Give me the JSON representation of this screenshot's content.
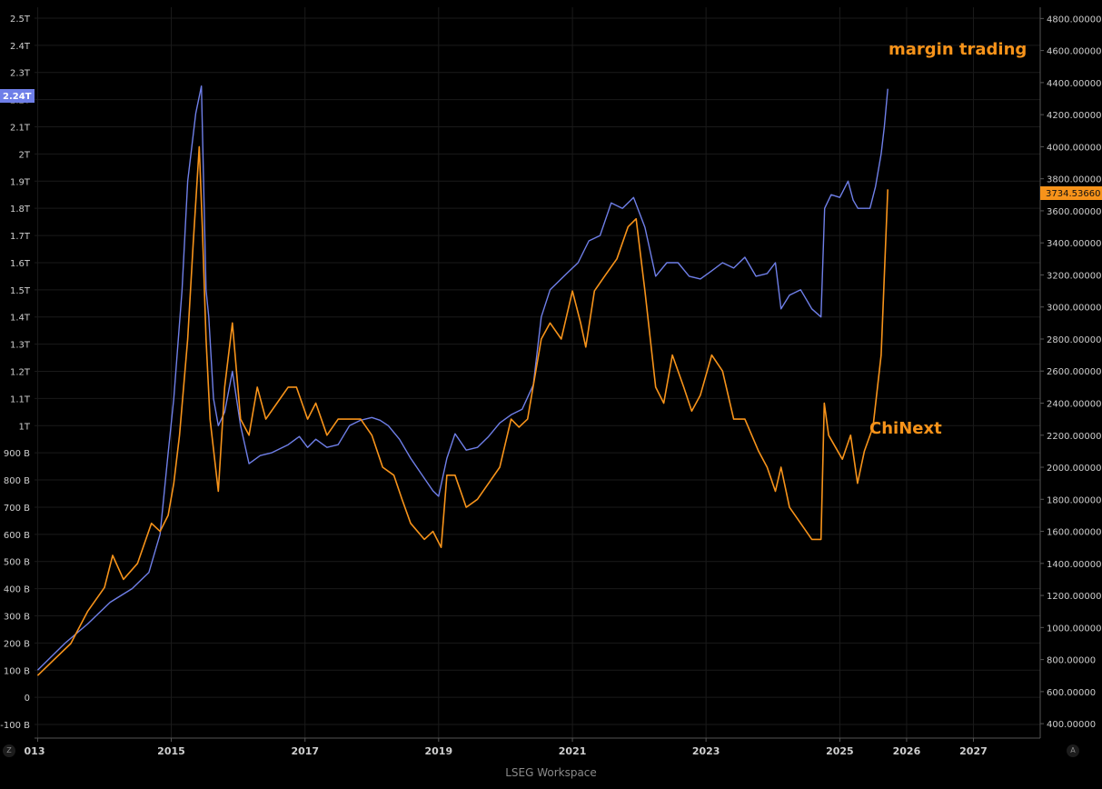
{
  "footer_text": "LSEG Workspace",
  "corner_left": "Z",
  "corner_right": "A",
  "chart_data": {
    "type": "line",
    "x_ticks": [
      "013",
      "2015",
      "2017",
      "2019",
      "2021",
      "2023",
      "2025",
      "2026",
      "2027"
    ],
    "xlim": [
      "2012-12-15",
      "2028-01-01"
    ],
    "left_axis": {
      "ticks": [
        "-100 B",
        "0",
        "100 B",
        "200 B",
        "300 B",
        "400 B",
        "500 B",
        "600 B",
        "700 B",
        "800 B",
        "900 B",
        "1T",
        "1.1T",
        "1.2T",
        "1.3T",
        "1.4T",
        "1.5T",
        "1.6T",
        "1.7T",
        "1.8T",
        "1.9T",
        "2T",
        "2.1T",
        "2.2T",
        "2.3T",
        "2.4T",
        "2.5T"
      ],
      "tick_values": [
        -100,
        0,
        100,
        200,
        300,
        400,
        500,
        600,
        700,
        800,
        900,
        1000,
        1100,
        1200,
        1300,
        1400,
        1500,
        1600,
        1700,
        1800,
        1900,
        2000,
        2100,
        2200,
        2300,
        2400,
        2500
      ],
      "unit_note": "B",
      "ylim": [
        -150,
        2540
      ],
      "last_value_label": "2.24T"
    },
    "right_axis": {
      "ticks": [
        "400.00000",
        "600.00000",
        "800.00000",
        "1000.00000",
        "1200.00000",
        "1400.00000",
        "1600.00000",
        "1800.00000",
        "2000.00000",
        "2200.00000",
        "2400.00000",
        "2600.00000",
        "2800.00000",
        "3000.00000",
        "3200.00000",
        "3400.00000",
        "3600.00000",
        "3800.00000",
        "4000.00000",
        "4200.00000",
        "4400.00000",
        "4600.00000",
        "4800.00000"
      ],
      "tick_values": [
        400,
        600,
        800,
        1000,
        1200,
        1400,
        1600,
        1800,
        2000,
        2200,
        2400,
        2600,
        2800,
        3000,
        3200,
        3400,
        3600,
        3800,
        4000,
        4200,
        4400,
        4600,
        4800
      ],
      "ylim": [
        310,
        4870
      ],
      "last_value_label": "3734.53660"
    },
    "annotations": [
      {
        "text": "margin trading",
        "color": "#f7931a"
      },
      {
        "text": "ChiNext",
        "color": "#f7931a"
      }
    ],
    "series": [
      {
        "name": "margin trading",
        "axis": "left",
        "color": "#6f7fe8",
        "points": [
          [
            "2013-01-01",
            100
          ],
          [
            "2013-06-01",
            200
          ],
          [
            "2013-10-01",
            270
          ],
          [
            "2014-02-01",
            350
          ],
          [
            "2014-06-01",
            400
          ],
          [
            "2014-09-01",
            460
          ],
          [
            "2014-11-01",
            600
          ],
          [
            "2014-12-15",
            900
          ],
          [
            "2015-01-15",
            1100
          ],
          [
            "2015-03-01",
            1500
          ],
          [
            "2015-04-01",
            1900
          ],
          [
            "2015-05-15",
            2150
          ],
          [
            "2015-06-15",
            2250
          ],
          [
            "2015-07-10",
            1500
          ],
          [
            "2015-07-25",
            1400
          ],
          [
            "2015-08-20",
            1100
          ],
          [
            "2015-09-15",
            1000
          ],
          [
            "2015-10-20",
            1050
          ],
          [
            "2015-12-01",
            1200
          ],
          [
            "2016-01-15",
            1000
          ],
          [
            "2016-03-01",
            860
          ],
          [
            "2016-05-01",
            890
          ],
          [
            "2016-07-01",
            900
          ],
          [
            "2016-10-01",
            930
          ],
          [
            "2016-12-01",
            960
          ],
          [
            "2017-01-15",
            920
          ],
          [
            "2017-03-01",
            950
          ],
          [
            "2017-05-01",
            920
          ],
          [
            "2017-07-01",
            930
          ],
          [
            "2017-09-01",
            1000
          ],
          [
            "2017-11-01",
            1020
          ],
          [
            "2018-01-01",
            1030
          ],
          [
            "2018-02-15",
            1020
          ],
          [
            "2018-04-01",
            1000
          ],
          [
            "2018-06-01",
            950
          ],
          [
            "2018-08-01",
            880
          ],
          [
            "2018-10-01",
            820
          ],
          [
            "2018-12-01",
            760
          ],
          [
            "2019-01-01",
            740
          ],
          [
            "2019-02-15",
            880
          ],
          [
            "2019-04-01",
            970
          ],
          [
            "2019-06-01",
            910
          ],
          [
            "2019-08-01",
            920
          ],
          [
            "2019-10-01",
            960
          ],
          [
            "2019-12-01",
            1010
          ],
          [
            "2020-02-01",
            1040
          ],
          [
            "2020-04-01",
            1060
          ],
          [
            "2020-06-01",
            1150
          ],
          [
            "2020-07-15",
            1400
          ],
          [
            "2020-09-01",
            1500
          ],
          [
            "2020-12-01",
            1560
          ],
          [
            "2021-02-01",
            1600
          ],
          [
            "2021-04-01",
            1680
          ],
          [
            "2021-06-01",
            1700
          ],
          [
            "2021-08-01",
            1820
          ],
          [
            "2021-10-01",
            1800
          ],
          [
            "2021-12-01",
            1840
          ],
          [
            "2022-02-01",
            1730
          ],
          [
            "2022-04-01",
            1550
          ],
          [
            "2022-06-01",
            1600
          ],
          [
            "2022-08-01",
            1600
          ],
          [
            "2022-10-01",
            1550
          ],
          [
            "2022-12-01",
            1540
          ],
          [
            "2023-02-01",
            1570
          ],
          [
            "2023-04-01",
            1600
          ],
          [
            "2023-06-01",
            1580
          ],
          [
            "2023-08-01",
            1620
          ],
          [
            "2023-10-01",
            1550
          ],
          [
            "2023-12-01",
            1560
          ],
          [
            "2024-01-15",
            1600
          ],
          [
            "2024-02-15",
            1430
          ],
          [
            "2024-04-01",
            1480
          ],
          [
            "2024-06-01",
            1500
          ],
          [
            "2024-08-01",
            1430
          ],
          [
            "2024-09-20",
            1400
          ],
          [
            "2024-10-10",
            1800
          ],
          [
            "2024-11-15",
            1850
          ],
          [
            "2025-01-01",
            1840
          ],
          [
            "2025-02-15",
            1900
          ],
          [
            "2025-03-15",
            1830
          ],
          [
            "2025-04-10",
            1800
          ],
          [
            "2025-05-15",
            1800
          ],
          [
            "2025-06-15",
            1800
          ],
          [
            "2025-07-15",
            1880
          ],
          [
            "2025-08-15",
            2000
          ],
          [
            "2025-09-01",
            2100
          ],
          [
            "2025-09-20",
            2240
          ]
        ]
      },
      {
        "name": "ChiNext",
        "axis": "right",
        "color": "#f7931a",
        "points": [
          [
            "2013-01-01",
            700
          ],
          [
            "2013-04-01",
            800
          ],
          [
            "2013-07-01",
            900
          ],
          [
            "2013-10-01",
            1100
          ],
          [
            "2014-01-01",
            1250
          ],
          [
            "2014-02-15",
            1450
          ],
          [
            "2014-04-15",
            1300
          ],
          [
            "2014-07-01",
            1400
          ],
          [
            "2014-09-15",
            1650
          ],
          [
            "2014-11-01",
            1600
          ],
          [
            "2014-12-15",
            1700
          ],
          [
            "2015-01-15",
            1900
          ],
          [
            "2015-02-15",
            2200
          ],
          [
            "2015-04-01",
            2800
          ],
          [
            "2015-05-01",
            3400
          ],
          [
            "2015-06-03",
            4000
          ],
          [
            "2015-06-20",
            3500
          ],
          [
            "2015-07-10",
            2800
          ],
          [
            "2015-08-01",
            2300
          ],
          [
            "2015-09-15",
            1850
          ],
          [
            "2015-10-20",
            2500
          ],
          [
            "2015-12-01",
            2900
          ],
          [
            "2016-01-15",
            2300
          ],
          [
            "2016-03-01",
            2200
          ],
          [
            "2016-04-15",
            2500
          ],
          [
            "2016-06-01",
            2300
          ],
          [
            "2016-08-01",
            2400
          ],
          [
            "2016-10-01",
            2500
          ],
          [
            "2016-11-15",
            2500
          ],
          [
            "2017-01-15",
            2300
          ],
          [
            "2017-03-01",
            2400
          ],
          [
            "2017-05-01",
            2200
          ],
          [
            "2017-07-01",
            2300
          ],
          [
            "2017-09-01",
            2300
          ],
          [
            "2017-11-01",
            2300
          ],
          [
            "2018-01-01",
            2200
          ],
          [
            "2018-03-01",
            2000
          ],
          [
            "2018-05-01",
            1950
          ],
          [
            "2018-06-15",
            1800
          ],
          [
            "2018-08-01",
            1650
          ],
          [
            "2018-10-15",
            1550
          ],
          [
            "2018-12-01",
            1600
          ],
          [
            "2019-01-15",
            1500
          ],
          [
            "2019-02-15",
            1950
          ],
          [
            "2019-04-01",
            1950
          ],
          [
            "2019-06-01",
            1750
          ],
          [
            "2019-08-01",
            1800
          ],
          [
            "2019-10-01",
            1900
          ],
          [
            "2019-12-01",
            2000
          ],
          [
            "2020-02-01",
            2300
          ],
          [
            "2020-03-15",
            2250
          ],
          [
            "2020-05-01",
            2300
          ],
          [
            "2020-07-15",
            2800
          ],
          [
            "2020-09-01",
            2900
          ],
          [
            "2020-11-01",
            2800
          ],
          [
            "2021-01-01",
            3100
          ],
          [
            "2021-02-15",
            2900
          ],
          [
            "2021-03-15",
            2750
          ],
          [
            "2021-05-01",
            3100
          ],
          [
            "2021-07-01",
            3200
          ],
          [
            "2021-09-01",
            3300
          ],
          [
            "2021-11-01",
            3500
          ],
          [
            "2021-12-15",
            3550
          ],
          [
            "2022-02-01",
            3100
          ],
          [
            "2022-04-01",
            2500
          ],
          [
            "2022-05-15",
            2400
          ],
          [
            "2022-07-01",
            2700
          ],
          [
            "2022-09-01",
            2500
          ],
          [
            "2022-10-15",
            2350
          ],
          [
            "2022-12-01",
            2450
          ],
          [
            "2023-02-01",
            2700
          ],
          [
            "2023-04-01",
            2600
          ],
          [
            "2023-06-01",
            2300
          ],
          [
            "2023-08-01",
            2300
          ],
          [
            "2023-10-15",
            2100
          ],
          [
            "2023-12-01",
            2000
          ],
          [
            "2024-01-15",
            1850
          ],
          [
            "2024-02-15",
            2000
          ],
          [
            "2024-04-01",
            1750
          ],
          [
            "2024-06-01",
            1650
          ],
          [
            "2024-08-01",
            1550
          ],
          [
            "2024-09-20",
            1550
          ],
          [
            "2024-10-08",
            2400
          ],
          [
            "2024-11-01",
            2200
          ],
          [
            "2025-01-15",
            2050
          ],
          [
            "2025-03-01",
            2200
          ],
          [
            "2025-04-08",
            1900
          ],
          [
            "2025-05-15",
            2100
          ],
          [
            "2025-07-01",
            2250
          ],
          [
            "2025-08-15",
            2700
          ],
          [
            "2025-09-20",
            3734
          ]
        ]
      }
    ]
  }
}
